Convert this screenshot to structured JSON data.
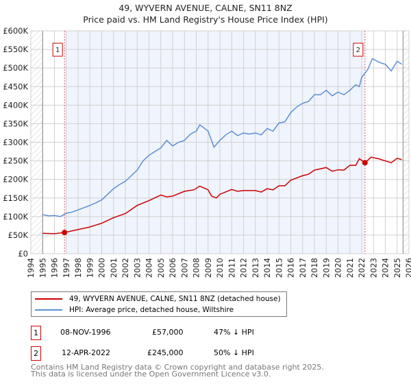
{
  "chart_data": {
    "type": "line",
    "title": "49, WYVERN AVENUE, CALNE, SN11 8NZ",
    "subtitle": "Price paid vs. HM Land Registry's House Price Index (HPI)",
    "xlim": [
      1994,
      2026
    ],
    "ylim": [
      0,
      600000
    ],
    "x_ticks": [
      "1994",
      "1995",
      "1996",
      "1997",
      "1998",
      "1999",
      "2000",
      "2001",
      "2002",
      "2003",
      "2004",
      "2005",
      "2006",
      "2007",
      "2008",
      "2009",
      "2010",
      "2011",
      "2012",
      "2013",
      "2014",
      "2015",
      "2016",
      "2017",
      "2018",
      "2019",
      "2020",
      "2021",
      "2022",
      "2023",
      "2024",
      "2025",
      "2026"
    ],
    "y_ticks": [
      {
        "v": 0,
        "l": "£0"
      },
      {
        "v": 50000,
        "l": "£50K"
      },
      {
        "v": 100000,
        "l": "£100K"
      },
      {
        "v": 150000,
        "l": "£150K"
      },
      {
        "v": 200000,
        "l": "£200K"
      },
      {
        "v": 250000,
        "l": "£250K"
      },
      {
        "v": 300000,
        "l": "£300K"
      },
      {
        "v": 350000,
        "l": "£350K"
      },
      {
        "v": 400000,
        "l": "£400K"
      },
      {
        "v": 450000,
        "l": "£450K"
      },
      {
        "v": 500000,
        "l": "£500K"
      },
      {
        "v": 550000,
        "l": "£550K"
      },
      {
        "v": 600000,
        "l": "£600K"
      }
    ],
    "grid": true,
    "series": [
      {
        "name": "49, WYVERN AVENUE, CALNE, SN11 8NZ (detached house)",
        "color": "#cc0000",
        "points": [
          [
            1995,
            55
          ],
          [
            1996,
            54
          ],
          [
            1996.85,
            57
          ],
          [
            1998,
            65
          ],
          [
            1999,
            72
          ],
          [
            2000,
            82
          ],
          [
            2001,
            97
          ],
          [
            2002,
            108
          ],
          [
            2003,
            130
          ],
          [
            2004,
            143
          ],
          [
            2005,
            158
          ],
          [
            2005.5,
            153
          ],
          [
            2006,
            155
          ],
          [
            2007,
            168
          ],
          [
            2007.8,
            172
          ],
          [
            2008.3,
            182
          ],
          [
            2009,
            172
          ],
          [
            2009.3,
            155
          ],
          [
            2009.7,
            150
          ],
          [
            2010,
            160
          ],
          [
            2011,
            173
          ],
          [
            2011.5,
            168
          ],
          [
            2012,
            170
          ],
          [
            2013,
            170
          ],
          [
            2013.5,
            166
          ],
          [
            2014,
            175
          ],
          [
            2014.5,
            172
          ],
          [
            2015,
            183
          ],
          [
            2015.5,
            183
          ],
          [
            2016,
            198
          ],
          [
            2017,
            210
          ],
          [
            2017.5,
            214
          ],
          [
            2018,
            225
          ],
          [
            2019,
            232
          ],
          [
            2019.5,
            222
          ],
          [
            2020,
            226
          ],
          [
            2020.5,
            225
          ],
          [
            2021,
            238
          ],
          [
            2021.5,
            238
          ],
          [
            2021.8,
            256
          ],
          [
            2022.28,
            245
          ],
          [
            2022.8,
            260
          ],
          [
            2023.5,
            255
          ],
          [
            2024,
            250
          ],
          [
            2024.5,
            245
          ],
          [
            2025,
            257
          ],
          [
            2025.4,
            253
          ]
        ]
      },
      {
        "name": "HPI: Average price, detached house, Wiltshire",
        "color": "#5b8fd4",
        "points": [
          [
            1995,
            105
          ],
          [
            1995.5,
            102
          ],
          [
            1996,
            103
          ],
          [
            1996.5,
            100
          ],
          [
            1997,
            109
          ],
          [
            1997.5,
            112
          ],
          [
            1998,
            118
          ],
          [
            1998.5,
            124
          ],
          [
            1999,
            130
          ],
          [
            1999.5,
            137
          ],
          [
            2000,
            145
          ],
          [
            2000.5,
            160
          ],
          [
            2001,
            175
          ],
          [
            2001.5,
            186
          ],
          [
            2002,
            195
          ],
          [
            2002.5,
            210
          ],
          [
            2003,
            225
          ],
          [
            2003.5,
            250
          ],
          [
            2004,
            265
          ],
          [
            2004.5,
            275
          ],
          [
            2005,
            285
          ],
          [
            2005.5,
            305
          ],
          [
            2006,
            290
          ],
          [
            2006.5,
            300
          ],
          [
            2007,
            305
          ],
          [
            2007.5,
            322
          ],
          [
            2008,
            330
          ],
          [
            2008.3,
            347
          ],
          [
            2008.8,
            335
          ],
          [
            2009,
            330
          ],
          [
            2009.5,
            287
          ],
          [
            2010,
            305
          ],
          [
            2010.5,
            320
          ],
          [
            2011,
            330
          ],
          [
            2011.5,
            318
          ],
          [
            2012,
            325
          ],
          [
            2012.5,
            322
          ],
          [
            2013,
            325
          ],
          [
            2013.5,
            320
          ],
          [
            2014,
            337
          ],
          [
            2014.5,
            330
          ],
          [
            2015,
            352
          ],
          [
            2015.5,
            355
          ],
          [
            2016,
            380
          ],
          [
            2016.5,
            395
          ],
          [
            2017,
            405
          ],
          [
            2017.5,
            410
          ],
          [
            2018,
            428
          ],
          [
            2018.5,
            428
          ],
          [
            2019,
            440
          ],
          [
            2019.5,
            425
          ],
          [
            2020,
            435
          ],
          [
            2020.5,
            428
          ],
          [
            2021,
            440
          ],
          [
            2021.5,
            455
          ],
          [
            2021.8,
            450
          ],
          [
            2022,
            475
          ],
          [
            2022.5,
            495
          ],
          [
            2022.9,
            525
          ],
          [
            2023.5,
            515
          ],
          [
            2024,
            510
          ],
          [
            2024.5,
            492
          ],
          [
            2025,
            518
          ],
          [
            2025.4,
            510
          ]
        ]
      }
    ],
    "sales": [
      {
        "label": "1",
        "x": 1996.85,
        "y": 57000
      },
      {
        "label": "2",
        "x": 2022.28,
        "y": 245000
      }
    ],
    "hatched_before": 1995,
    "hatched_after": 2025.5
  },
  "legend": {
    "items": [
      "49, WYVERN AVENUE, CALNE, SN11 8NZ (detached house)",
      "HPI: Average price, detached house, Wiltshire"
    ]
  },
  "transactions": [
    {
      "num": "1",
      "date": "08-NOV-1996",
      "price": "£57,000",
      "hpi": "47% ↓ HPI"
    },
    {
      "num": "2",
      "date": "12-APR-2022",
      "price": "£245,000",
      "hpi": "50% ↓ HPI"
    }
  ],
  "footer": [
    "Contains HM Land Registry data © Crown copyright and database right 2025.",
    "This data is licensed under the Open Government Licence v3.0."
  ]
}
